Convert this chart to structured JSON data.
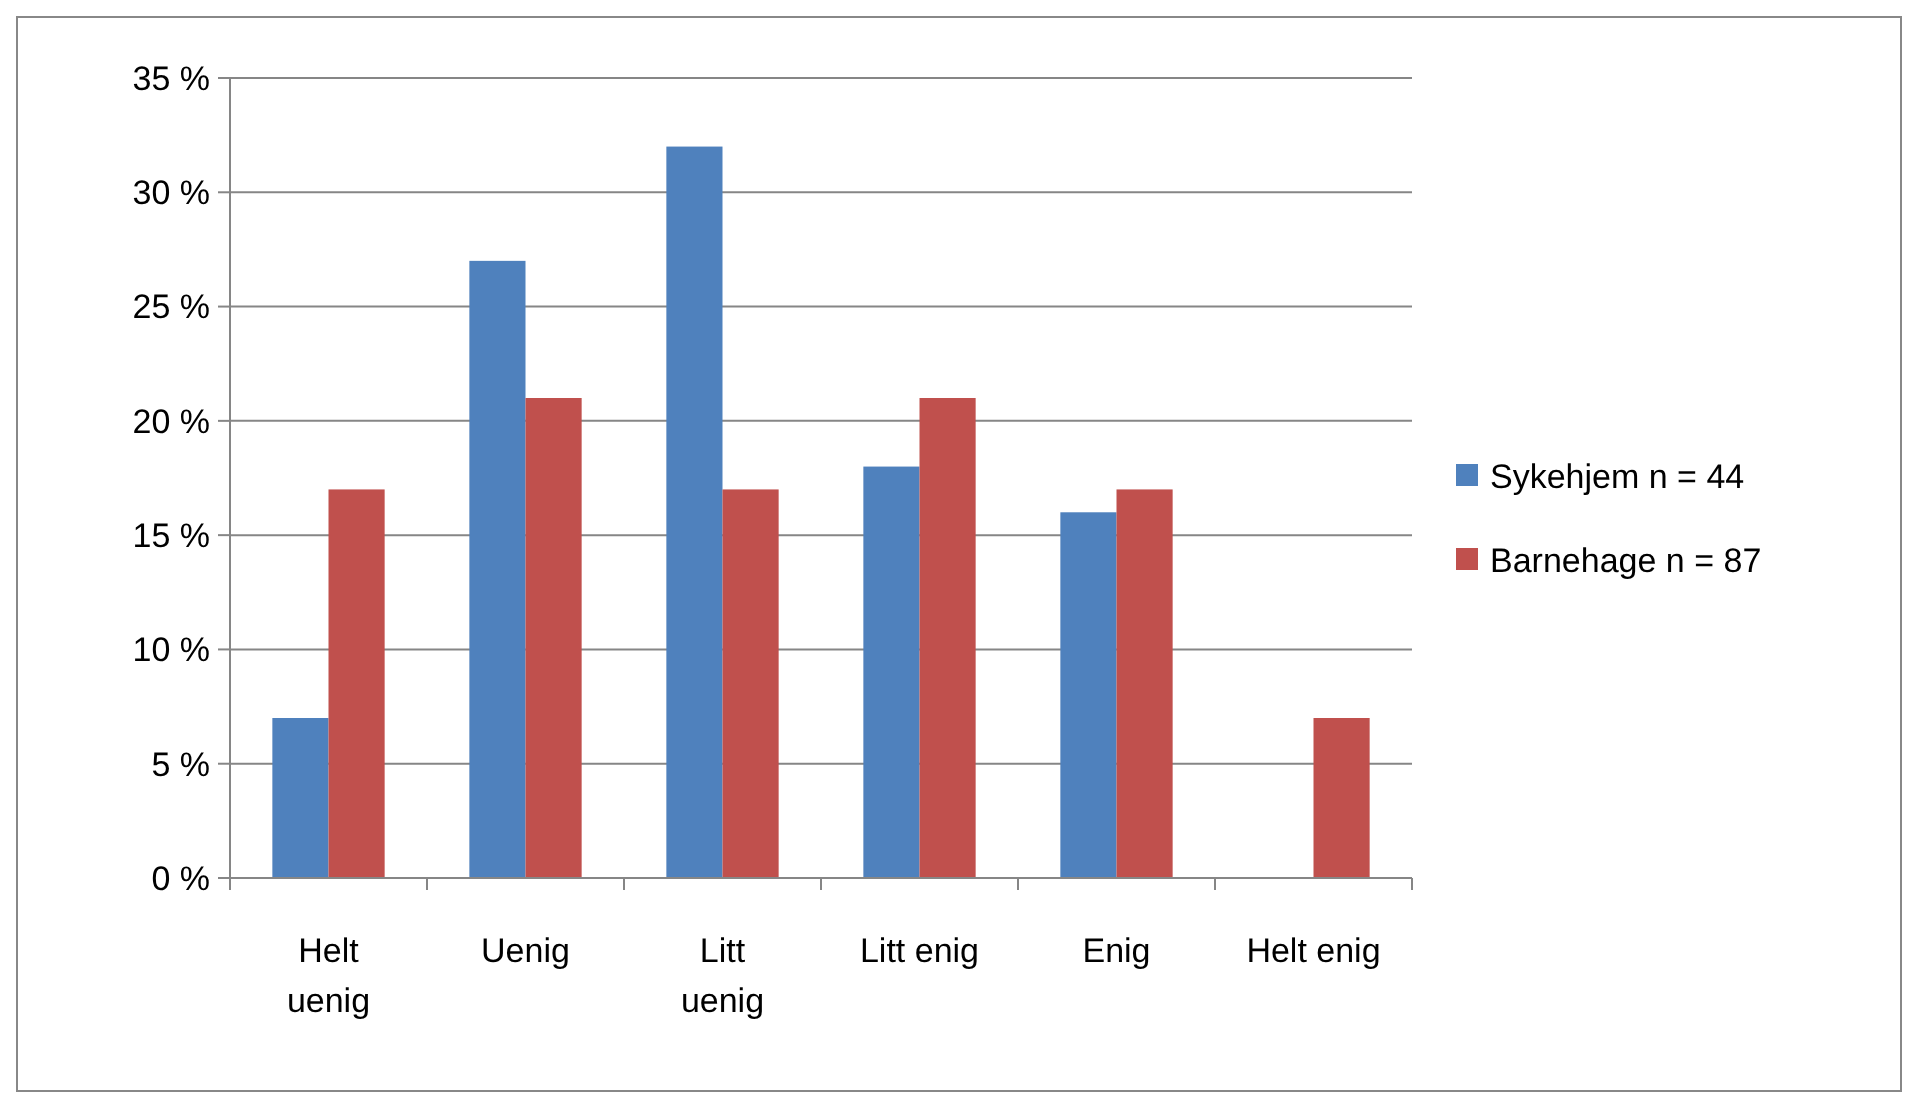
{
  "chart_data": {
    "type": "bar",
    "categories": [
      "Helt uenig",
      "Uenig",
      "Litt uenig",
      "Litt enig",
      "Enig",
      "Helt enig"
    ],
    "series": [
      {
        "name": "Sykehjem n = 44",
        "color": "#4f81bd",
        "values": [
          7,
          27,
          32,
          18,
          16,
          0
        ]
      },
      {
        "name": "Barnehage n = 87",
        "color": "#c0504d",
        "values": [
          17,
          21,
          17,
          21,
          17,
          7
        ]
      }
    ],
    "ylim": [
      0,
      35
    ],
    "yticks": [
      {
        "value": 0,
        "label": "0 %"
      },
      {
        "value": 5,
        "label": "5 %"
      },
      {
        "value": 10,
        "label": "10 %"
      },
      {
        "value": 15,
        "label": "15 %"
      },
      {
        "value": 20,
        "label": "20 %"
      },
      {
        "value": 25,
        "label": "25 %"
      },
      {
        "value": 30,
        "label": "30 %"
      },
      {
        "value": 35,
        "label": "35 %"
      }
    ],
    "grid": "y",
    "legend": "right"
  }
}
